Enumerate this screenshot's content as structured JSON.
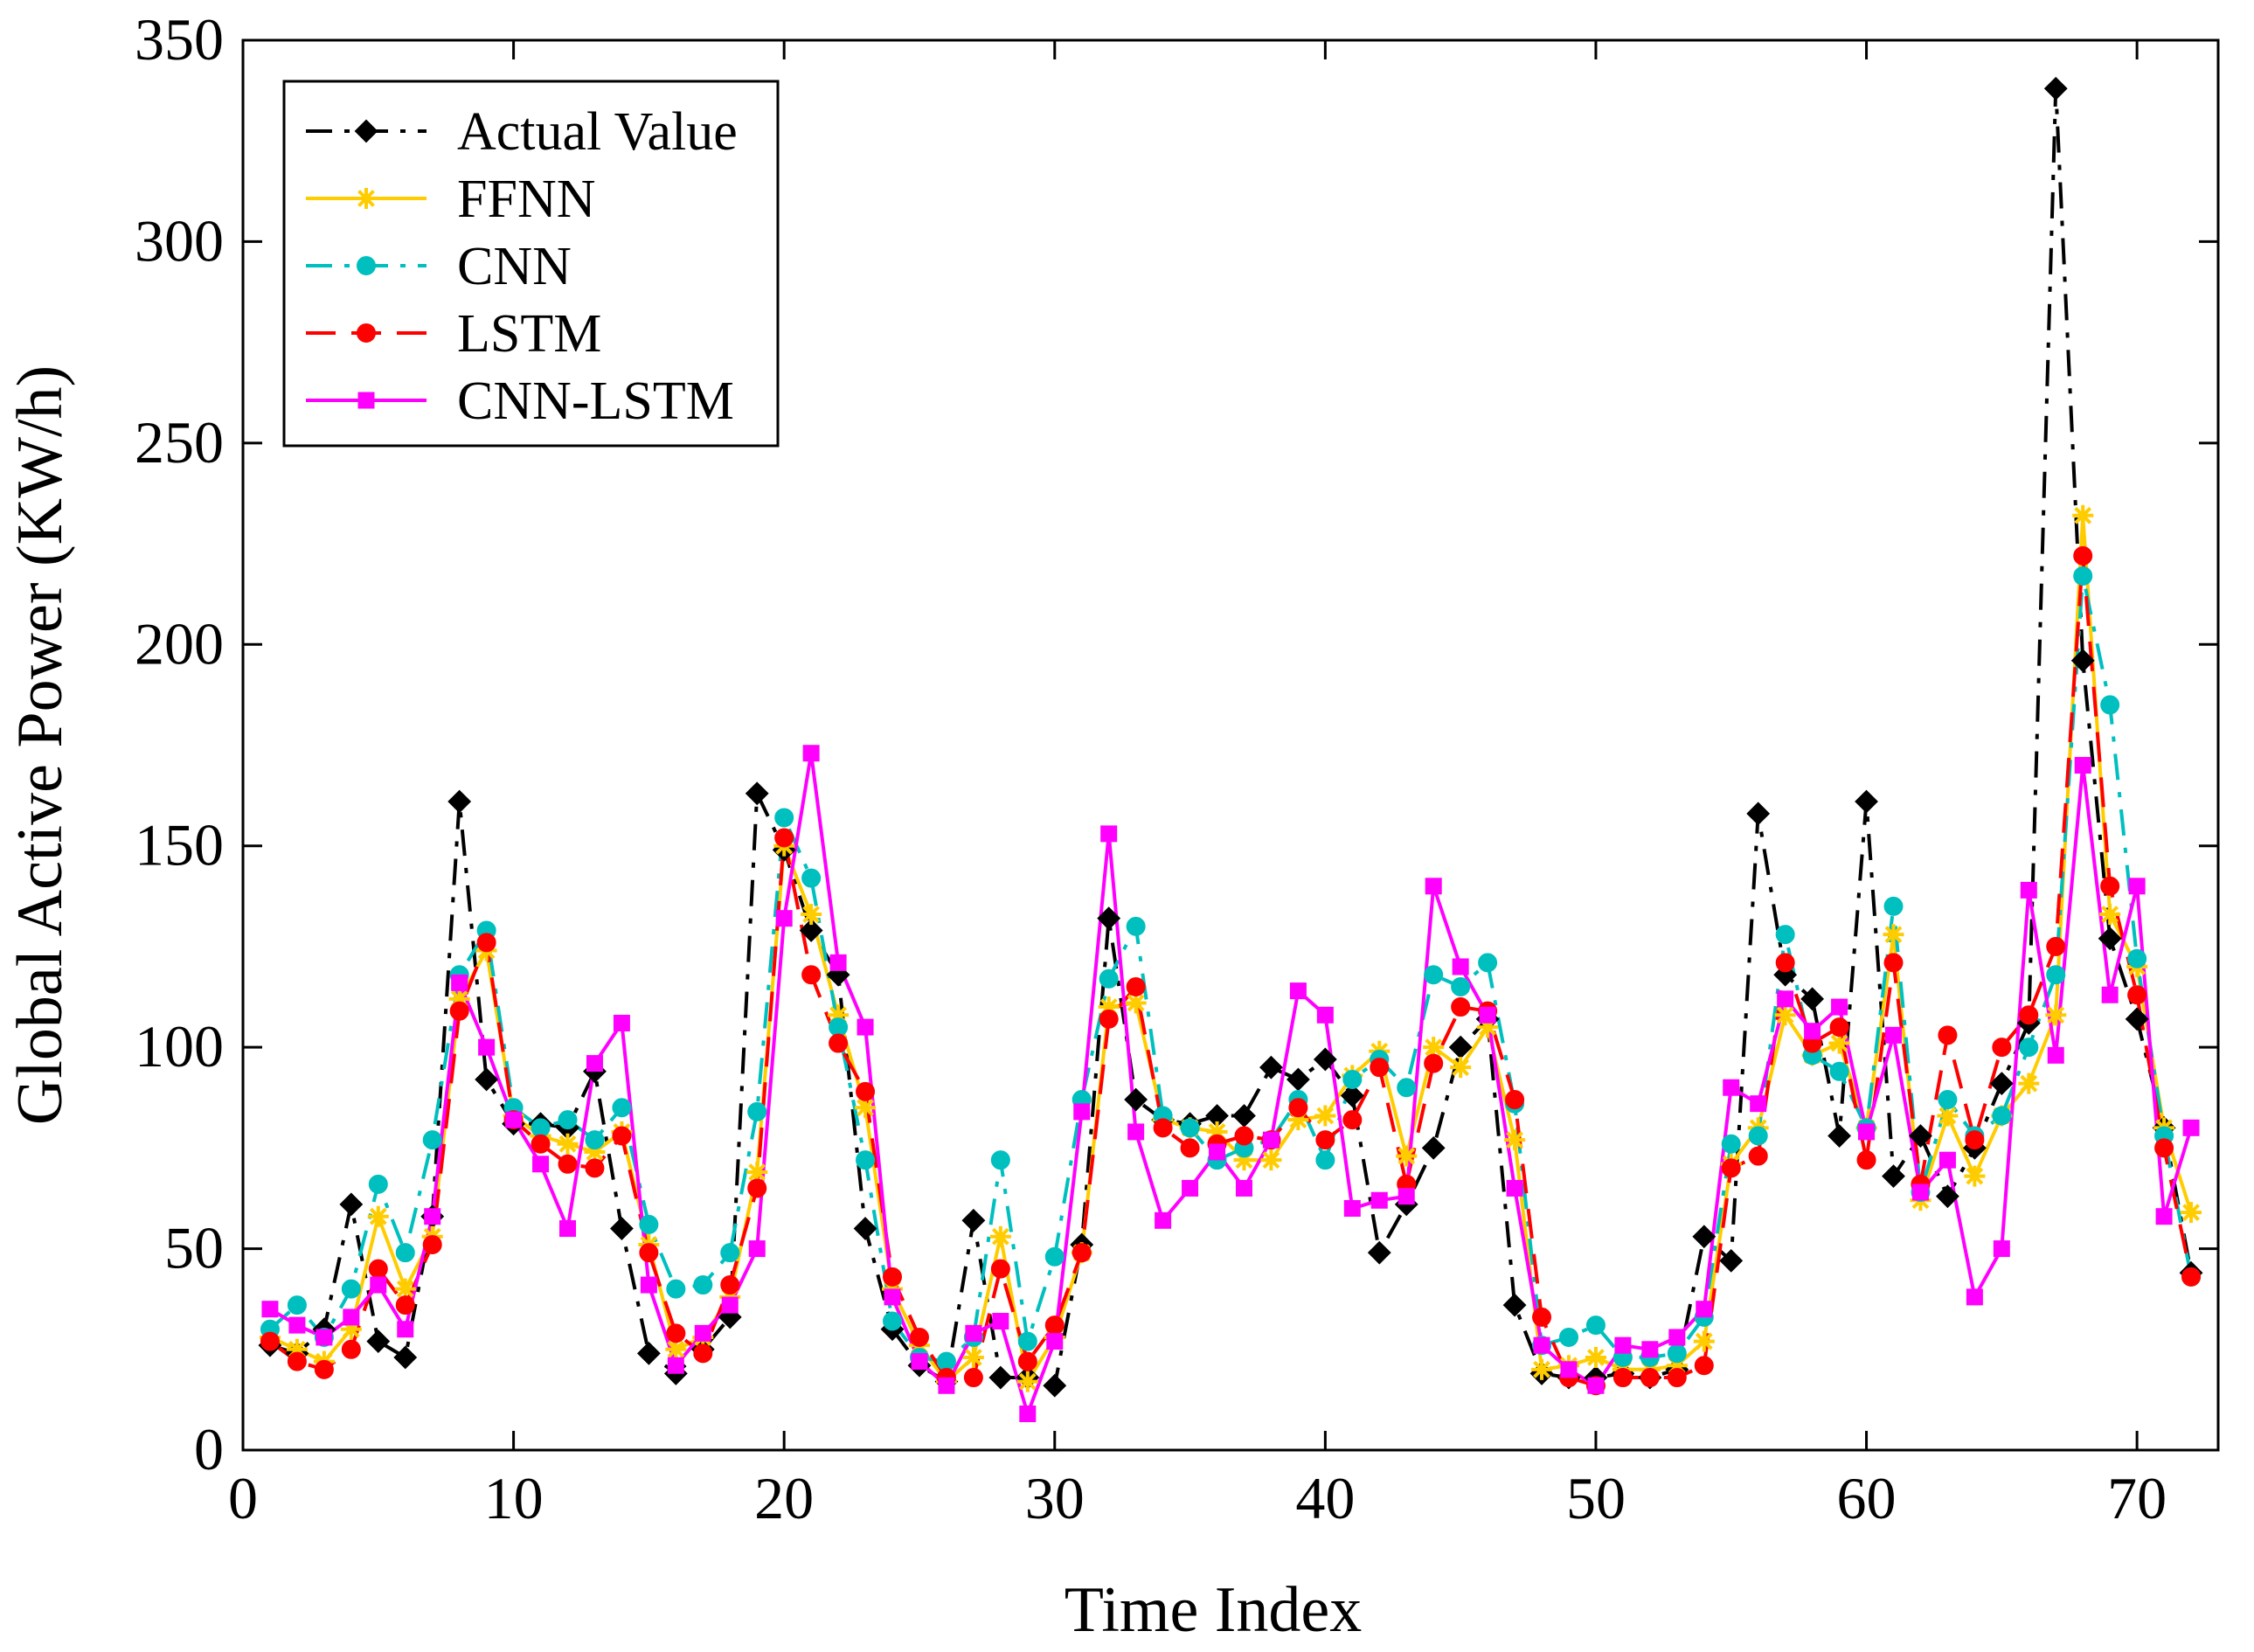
{
  "chart_data": {
    "type": "line",
    "xlabel": "Time Index",
    "ylabel": "Global Active Power (KW/h)",
    "xlim": [
      0,
      73
    ],
    "ylim": [
      0,
      350
    ],
    "xticks": [
      0,
      10,
      20,
      30,
      40,
      50,
      60,
      70
    ],
    "yticks": [
      0,
      50,
      100,
      150,
      200,
      250,
      300,
      350
    ],
    "grid": false,
    "legend_position": "top-left",
    "x": [
      1,
      2,
      3,
      4,
      5,
      6,
      7,
      8,
      9,
      10,
      11,
      12,
      13,
      14,
      15,
      16,
      17,
      18,
      19,
      20,
      21,
      22,
      23,
      24,
      25,
      26,
      27,
      28,
      29,
      30,
      31,
      32,
      33,
      34,
      35,
      36,
      37,
      38,
      39,
      40,
      41,
      42,
      43,
      44,
      45,
      46,
      47,
      48,
      49,
      50,
      51,
      52,
      53,
      54,
      55,
      56,
      57,
      58,
      59,
      60,
      61,
      62,
      63,
      64,
      65,
      66,
      67,
      68,
      69,
      70,
      71,
      72
    ],
    "series": [
      {
        "name": "Actual Value",
        "color": "#000000",
        "dash": "dashdot",
        "marker": "diamond",
        "values": [
          26,
          24,
          30,
          61,
          27,
          23,
          58,
          161,
          92,
          81,
          81,
          80,
          94,
          55,
          24,
          19,
          25,
          33,
          163,
          149,
          129,
          118,
          55,
          30,
          21,
          17,
          57,
          18,
          18,
          16,
          51,
          132,
          87,
          82,
          81,
          83,
          83,
          95,
          92,
          97,
          88,
          49,
          61,
          75,
          100,
          107,
          36,
          19,
          18,
          18,
          19,
          18,
          20,
          53,
          47,
          158,
          118,
          112,
          78,
          161,
          68,
          78,
          63,
          75,
          91,
          106,
          338,
          196,
          127,
          107,
          80,
          44
        ]
      },
      {
        "name": "FFNN",
        "color": "#ffcc00",
        "dash": "solid",
        "marker": "asterisk",
        "values": [
          28,
          25,
          22,
          30,
          58,
          40,
          53,
          112,
          124,
          83,
          78,
          76,
          74,
          79,
          51,
          25,
          28,
          38,
          69,
          150,
          133,
          108,
          85,
          40,
          26,
          17,
          23,
          53,
          17,
          28,
          49,
          110,
          111,
          82,
          80,
          79,
          72,
          72,
          82,
          83,
          93,
          99,
          73,
          100,
          95,
          105,
          77,
          20,
          21,
          23,
          20,
          20,
          21,
          27,
          71,
          80,
          108,
          98,
          101,
          80,
          128,
          62,
          83,
          68,
          83,
          91,
          108,
          232,
          133,
          120,
          80,
          59
        ]
      },
      {
        "name": "CNN",
        "color": "#00bfbf",
        "dash": "dashdot",
        "marker": "circle",
        "values": [
          30,
          36,
          28,
          40,
          66,
          49,
          77,
          118,
          129,
          85,
          80,
          82,
          77,
          85,
          56,
          40,
          41,
          49,
          84,
          157,
          142,
          105,
          72,
          32,
          23,
          22,
          28,
          72,
          27,
          48,
          87,
          117,
          130,
          83,
          80,
          72,
          75,
          77,
          87,
          72,
          92,
          97,
          90,
          118,
          115,
          121,
          86,
          26,
          28,
          31,
          23,
          23,
          24,
          33,
          76,
          78,
          128,
          98,
          94,
          80,
          135,
          64,
          87,
          78,
          83,
          100,
          118,
          217,
          185,
          122,
          78,
          43
        ]
      },
      {
        "name": "LSTM",
        "color": "#ff0000",
        "dash": "dashed",
        "marker": "circle",
        "values": [
          27,
          22,
          20,
          25,
          45,
          36,
          51,
          109,
          126,
          82,
          76,
          71,
          70,
          78,
          49,
          29,
          24,
          41,
          65,
          152,
          118,
          101,
          89,
          43,
          28,
          18,
          18,
          45,
          22,
          31,
          49,
          107,
          115,
          80,
          75,
          76,
          78,
          77,
          85,
          77,
          82,
          95,
          66,
          96,
          110,
          109,
          87,
          33,
          18,
          16,
          18,
          18,
          18,
          21,
          70,
          73,
          121,
          101,
          105,
          72,
          121,
          66,
          103,
          77,
          100,
          108,
          125,
          222,
          140,
          113,
          75,
          43
        ]
      },
      {
        "name": "CNN-LSTM",
        "color": "#ff00ff",
        "dash": "solid",
        "marker": "square",
        "values": [
          35,
          31,
          28,
          33,
          41,
          30,
          58,
          116,
          100,
          82,
          71,
          55,
          96,
          106,
          41,
          21,
          29,
          36,
          50,
          132,
          173,
          121,
          105,
          38,
          22,
          16,
          29,
          32,
          9,
          27,
          84,
          153,
          79,
          57,
          65,
          74,
          65,
          77,
          114,
          108,
          60,
          62,
          63,
          140,
          120,
          108,
          65,
          26,
          20,
          16,
          26,
          25,
          28,
          35,
          90,
          86,
          112,
          104,
          110,
          79,
          103,
          64,
          72,
          38,
          50,
          139,
          98,
          170,
          113,
          140,
          58,
          80
        ]
      }
    ]
  }
}
